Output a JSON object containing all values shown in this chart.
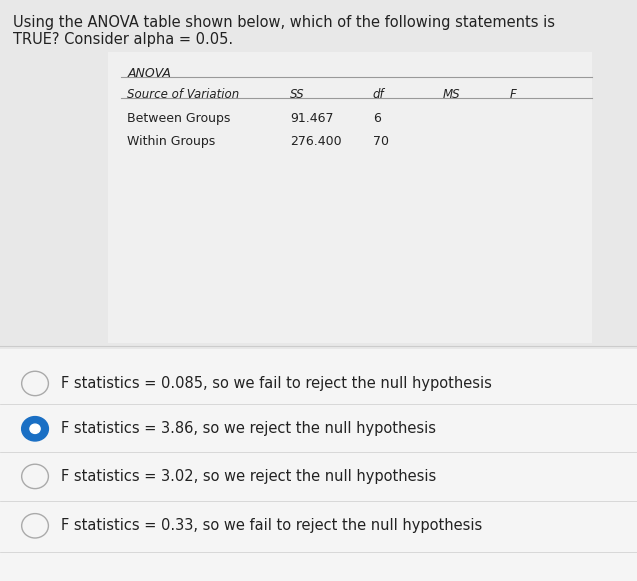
{
  "question_text_line1": "Using the ANOVA table shown below, which of the following statements is",
  "question_text_line2": "TRUE? Consider alpha = 0.05.",
  "anova_title": "ANOVA",
  "table_headers": [
    "Source of Variation",
    "SS",
    "df",
    "MS",
    "F"
  ],
  "table_row1": [
    "Between Groups",
    "91.467",
    "6",
    "",
    ""
  ],
  "table_row2": [
    "Within Groups",
    "276.400",
    "70",
    "",
    ""
  ],
  "options": [
    "F statistics = 0.085, so we fail to reject the null hypothesis",
    "F statistics = 3.86, so we reject the null hypothesis",
    "F statistics = 3.02, so we reject the null hypothesis",
    "F statistics = 0.33, so we fail to reject the null hypothesis"
  ],
  "selected_option": 1,
  "bg_color": "#e8e8e8",
  "white_section_color": "#f0f0f0",
  "options_bg_color": "#f5f5f5",
  "text_color": "#222222",
  "line_color": "#999999",
  "option_divider_color": "#cccccc",
  "selected_circle_color": "#1a6fc4",
  "unselected_circle_color": "#aaaaaa",
  "question_font_size": 10.5,
  "option_font_size": 10.5,
  "table_font_size": 9
}
